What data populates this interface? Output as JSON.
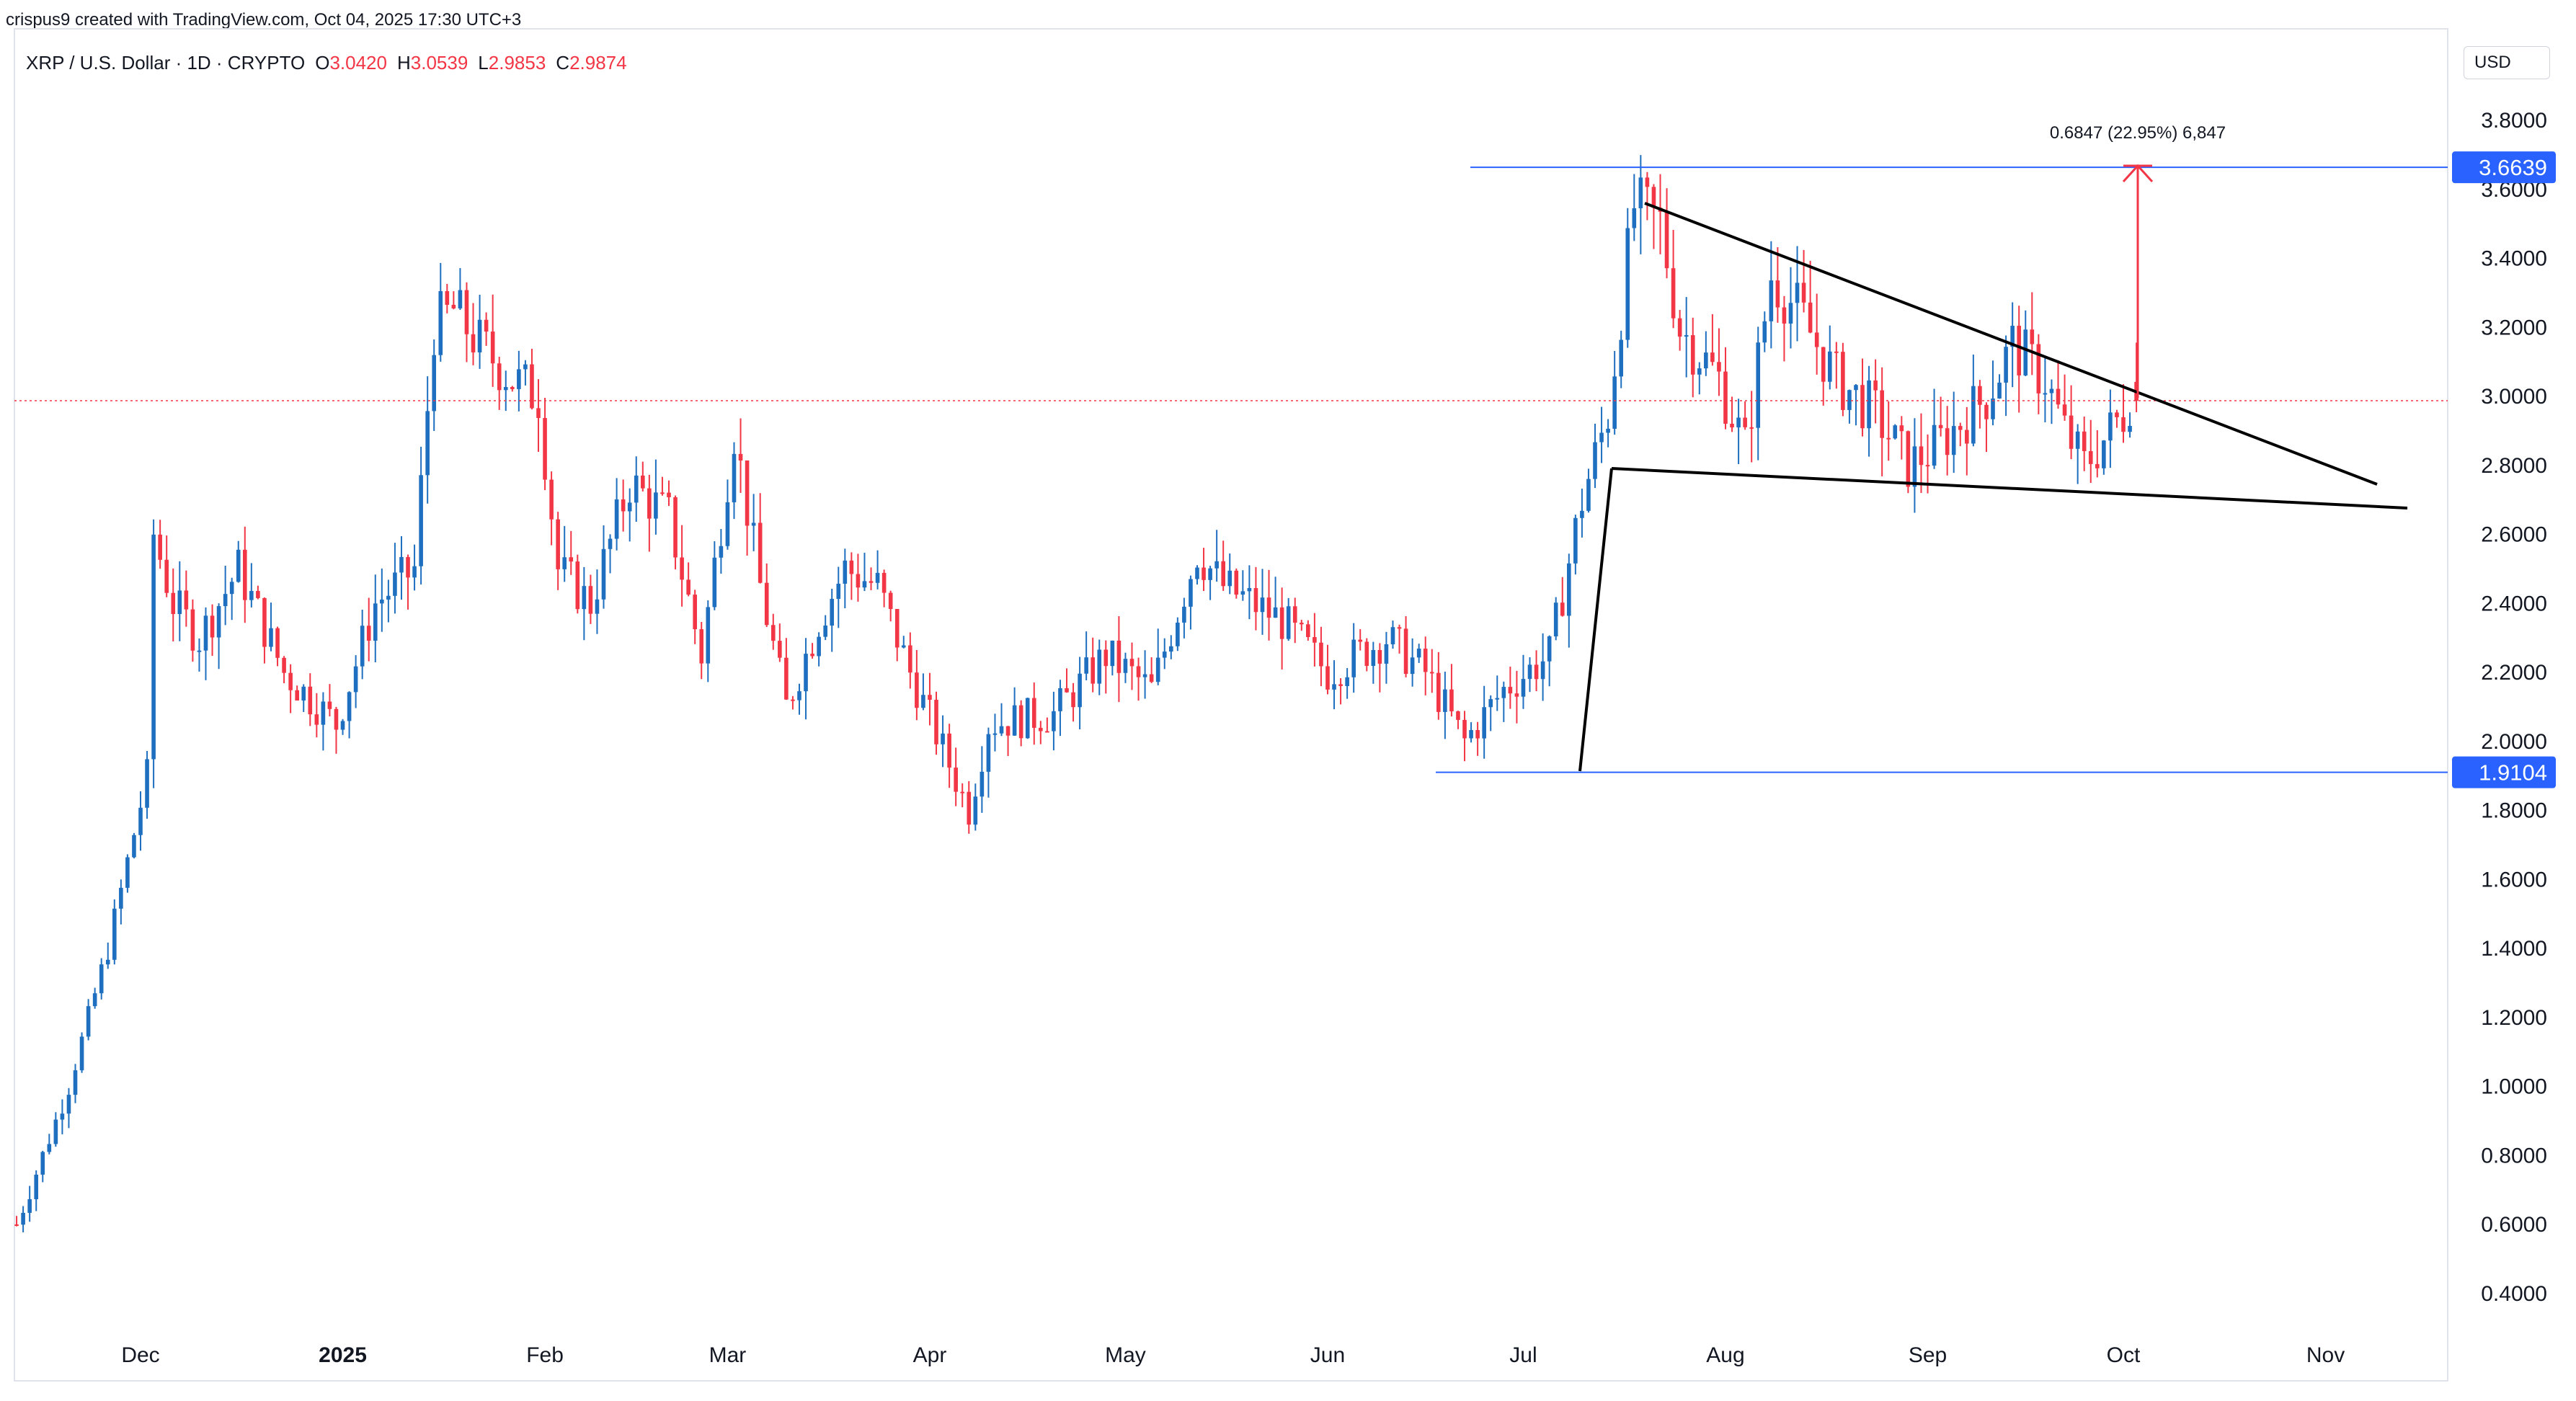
{
  "header": {
    "created_by": "crispus9 created with TradingView.com, Oct 04, 2025 17:30 UTC+3"
  },
  "legend": {
    "symbol": "XRP / U.S. Dollar · 1D · CRYPTO",
    "open_label": "O",
    "open": "3.0420",
    "high_label": "H",
    "high": "3.0539",
    "low_label": "L",
    "low": "2.9853",
    "close_label": "C",
    "close": "2.9874"
  },
  "currency": "USD",
  "colors": {
    "up": "#2962ff",
    "upCandle": "#1e6fbf",
    "down": "#f23645",
    "hline": "#2962ff",
    "trend": "#000000",
    "measure": "#f23645"
  },
  "chart_data": {
    "type": "candlestick",
    "title": "XRP / U.S. Dollar · 1D · CRYPTO",
    "y_ticks": [
      "3.8000",
      "3.6000",
      "3.4000",
      "3.2000",
      "3.0000",
      "2.8000",
      "2.6000",
      "2.4000",
      "2.2000",
      "2.0000",
      "1.8000",
      "1.6000",
      "1.4000",
      "1.2000",
      "1.0000",
      "0.8000",
      "0.6000",
      "0.4000"
    ],
    "x_ticks": [
      "Dec",
      "2025",
      "Feb",
      "Mar",
      "Apr",
      "May",
      "Jun",
      "Jul",
      "Aug",
      "Sep",
      "Oct",
      "Nov"
    ],
    "ylim": [
      0.32,
      3.95
    ],
    "price_labels": {
      "top": "3.6639",
      "bottom": "1.9104"
    },
    "measure_label": "0.6847 (22.95%) 6,847",
    "current_price": 2.9874,
    "horizontal_lines": [
      3.6639,
      1.9104
    ],
    "monthly_anchors": [
      [
        "2024-11-12",
        0.6
      ],
      [
        "2024-11-20",
        1.0
      ],
      [
        "2024-11-26",
        1.4
      ],
      [
        "2024-12-02",
        1.9
      ],
      [
        "2024-12-03",
        2.6
      ],
      [
        "2024-12-06",
        2.4
      ],
      [
        "2024-12-10",
        2.3
      ],
      [
        "2024-12-16",
        2.5
      ],
      [
        "2024-12-23",
        2.2
      ],
      [
        "2024-12-31",
        2.05
      ],
      [
        "2025-01-06",
        2.4
      ],
      [
        "2025-01-12",
        2.5
      ],
      [
        "2025-01-15",
        3.2
      ],
      [
        "2025-01-18",
        3.25
      ],
      [
        "2025-01-22",
        3.15
      ],
      [
        "2025-01-27",
        3.05
      ],
      [
        "2025-01-31",
        3.0
      ],
      [
        "2025-02-03",
        2.5
      ],
      [
        "2025-02-08",
        2.4
      ],
      [
        "2025-02-14",
        2.75
      ],
      [
        "2025-02-20",
        2.65
      ],
      [
        "2025-02-25",
        2.25
      ],
      [
        "2025-03-02",
        2.9
      ],
      [
        "2025-03-06",
        2.45
      ],
      [
        "2025-03-10",
        2.1
      ],
      [
        "2025-03-15",
        2.35
      ],
      [
        "2025-03-19",
        2.5
      ],
      [
        "2025-03-24",
        2.45
      ],
      [
        "2025-03-29",
        2.2
      ],
      [
        "2025-04-07",
        1.8
      ],
      [
        "2025-04-10",
        2.05
      ],
      [
        "2025-04-20",
        2.08
      ],
      [
        "2025-04-28",
        2.25
      ],
      [
        "2025-05-05",
        2.15
      ],
      [
        "2025-05-12",
        2.55
      ],
      [
        "2025-05-16",
        2.45
      ],
      [
        "2025-05-25",
        2.35
      ],
      [
        "2025-06-01",
        2.2
      ],
      [
        "2025-06-10",
        2.3
      ],
      [
        "2025-06-16",
        2.2
      ],
      [
        "2025-06-22",
        2.0
      ],
      [
        "2025-06-28",
        2.15
      ],
      [
        "2025-07-05",
        2.25
      ],
      [
        "2025-07-10",
        2.7
      ],
      [
        "2025-07-14",
        2.95
      ],
      [
        "2025-07-18",
        3.55
      ],
      [
        "2025-07-22",
        3.5
      ],
      [
        "2025-07-25",
        3.2
      ],
      [
        "2025-07-31",
        3.05
      ],
      [
        "2025-08-04",
        2.85
      ],
      [
        "2025-08-08",
        3.35
      ],
      [
        "2025-08-12",
        3.25
      ],
      [
        "2025-08-18",
        3.05
      ],
      [
        "2025-08-24",
        2.95
      ],
      [
        "2025-08-29",
        2.8
      ],
      [
        "2025-09-02",
        2.85
      ],
      [
        "2025-09-10",
        3.0
      ],
      [
        "2025-09-14",
        3.15
      ],
      [
        "2025-09-19",
        3.05
      ],
      [
        "2025-09-22",
        2.9
      ],
      [
        "2025-09-25",
        2.8
      ],
      [
        "2025-10-01",
        2.95
      ],
      [
        "2025-10-03",
        3.04
      ]
    ]
  }
}
